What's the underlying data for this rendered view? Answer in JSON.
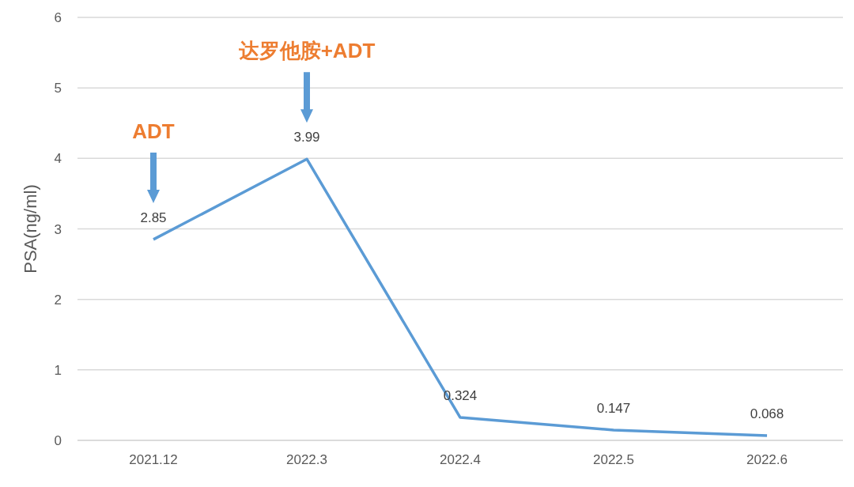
{
  "chart_data": {
    "type": "line",
    "ylabel": "PSA(ng/ml)",
    "categories": [
      "2021.12",
      "2022.3",
      "2022.4",
      "2022.5",
      "2022.6"
    ],
    "series": [
      {
        "color": "#5b9bd5",
        "values": [
          2.85,
          3.99,
          0.324,
          0.147,
          0.068
        ]
      }
    ],
    "ylim": [
      0,
      6
    ],
    "yticks": [
      0,
      1,
      2,
      3,
      4,
      5,
      6
    ],
    "grid": "y",
    "legend": false,
    "marker": "none",
    "line_style": "solid",
    "data_labels": true,
    "annotations": [
      "ADT",
      "达罗他胺+ADT"
    ]
  }
}
